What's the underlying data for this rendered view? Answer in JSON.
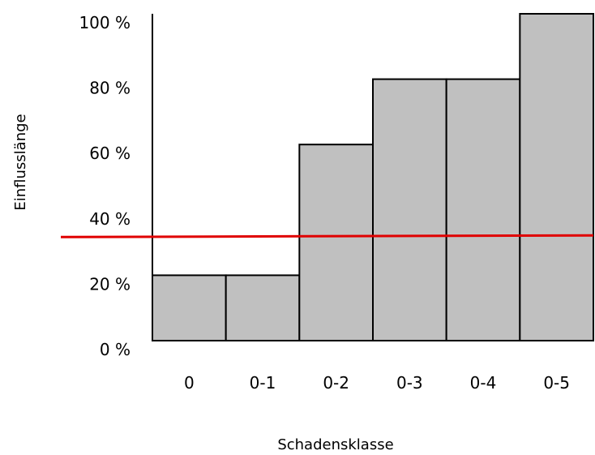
{
  "chart_data": {
    "type": "bar",
    "title": "",
    "xlabel": "Schadensklasse",
    "ylabel": "Einflusslänge",
    "categories": [
      "0",
      "0-1",
      "0-2",
      "0-3",
      "0-4",
      "0-5"
    ],
    "values": [
      20,
      20,
      60,
      80,
      80,
      100
    ],
    "ylim": [
      0,
      100
    ],
    "yticks": [
      0,
      20,
      40,
      60,
      80,
      100
    ],
    "ytick_labels": [
      "0 %",
      "20 %",
      "40 %",
      "60 %",
      "80 %",
      "100 %"
    ],
    "grid": false,
    "legend": "none",
    "reference_line": {
      "value_start": 31.7,
      "value_end": 32.2
    },
    "colors": {
      "bar_fill": "#c0c0c0",
      "bar_stroke": "#000000",
      "axis": "#000000",
      "reference_line": "#e00000"
    }
  }
}
